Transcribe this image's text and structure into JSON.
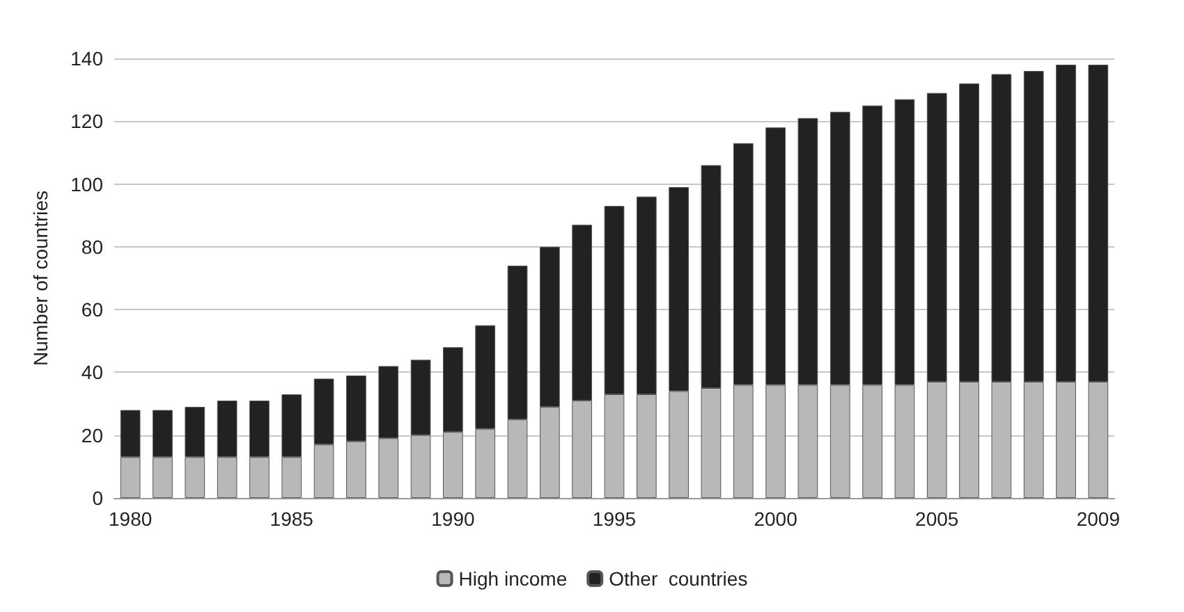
{
  "chart_data": {
    "type": "bar",
    "stacked": true,
    "ylabel": "Number of countries",
    "categories": [
      "1980",
      null,
      null,
      null,
      null,
      "1985",
      null,
      null,
      null,
      null,
      "1990",
      null,
      null,
      null,
      null,
      "1995",
      null,
      null,
      null,
      null,
      "2000",
      null,
      null,
      null,
      null,
      "2005",
      null,
      null,
      null,
      null,
      "2009"
    ],
    "series": [
      {
        "name": "High income",
        "color": "#b8b8b8",
        "values": [
          13,
          13,
          13,
          13,
          13,
          13,
          17,
          18,
          19,
          20,
          21,
          22,
          25,
          29,
          31,
          33,
          33,
          34,
          35,
          36,
          36,
          36,
          36,
          36,
          36,
          37,
          37,
          37,
          37,
          37,
          37
        ]
      },
      {
        "name": "Other  countries",
        "color": "#222222",
        "values": [
          15,
          15,
          16,
          18,
          18,
          20,
          21,
          21,
          23,
          24,
          27,
          33,
          49,
          51,
          56,
          60,
          63,
          65,
          71,
          77,
          82,
          85,
          87,
          89,
          91,
          92,
          95,
          98,
          99,
          101,
          101
        ]
      }
    ],
    "ylim": [
      0,
      140
    ],
    "yticks": [
      0,
      20,
      40,
      60,
      80,
      100,
      120,
      140
    ],
    "grid": "y",
    "legend": "bottom"
  }
}
